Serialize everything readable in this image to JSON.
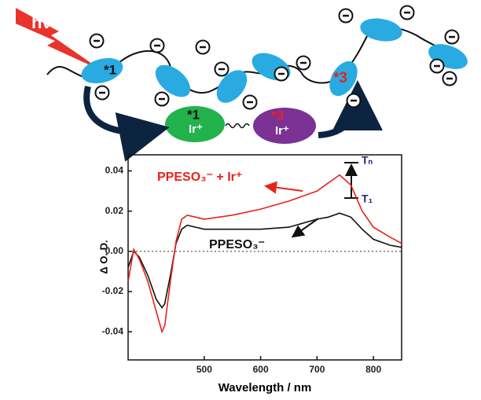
{
  "diagram": {
    "light": "hν",
    "chain_labels": [
      "*1",
      "*3"
    ],
    "complexes": [
      {
        "state": "*1",
        "ion": "Ir⁺"
      },
      {
        "state": "*3",
        "ion": "Ir⁺"
      }
    ]
  },
  "chart_data": {
    "type": "line",
    "xlabel": "Wavelength / nm",
    "ylabel": "Δ O. D.",
    "x": [
      365,
      375,
      385,
      400,
      415,
      425,
      430,
      440,
      450,
      460,
      470,
      500,
      550,
      600,
      650,
      700,
      720,
      740,
      760,
      780,
      800,
      830,
      850
    ],
    "series": [
      {
        "name": "PPESO₃⁻",
        "color": "#111111",
        "values": [
          -0.008,
          0.0,
          -0.003,
          -0.012,
          -0.024,
          -0.028,
          -0.026,
          -0.012,
          0.004,
          0.011,
          0.013,
          0.011,
          0.011,
          0.011,
          0.012,
          0.016,
          0.017,
          0.019,
          0.017,
          0.011,
          0.006,
          0.003,
          0.002
        ]
      },
      {
        "name": "PPESO₃⁻ + Ir⁺",
        "color": "#e8221c",
        "values": [
          -0.015,
          0.001,
          -0.004,
          -0.015,
          -0.03,
          -0.04,
          -0.037,
          -0.015,
          0.005,
          0.016,
          0.018,
          0.016,
          0.018,
          0.021,
          0.025,
          0.03,
          0.034,
          0.038,
          0.033,
          0.02,
          0.012,
          0.007,
          0.004
        ]
      }
    ],
    "xlim": [
      365,
      850
    ],
    "ylim": [
      -0.054,
      0.048
    ],
    "xticks": [
      500,
      600,
      700,
      800
    ],
    "yticks": [
      0.04,
      0.02,
      {
        "value": 0,
        "label": "0.00"
      },
      -0.02,
      -0.04
    ],
    "zero_line": true,
    "annotations": [
      "Tₙ",
      "T₁"
    ]
  }
}
